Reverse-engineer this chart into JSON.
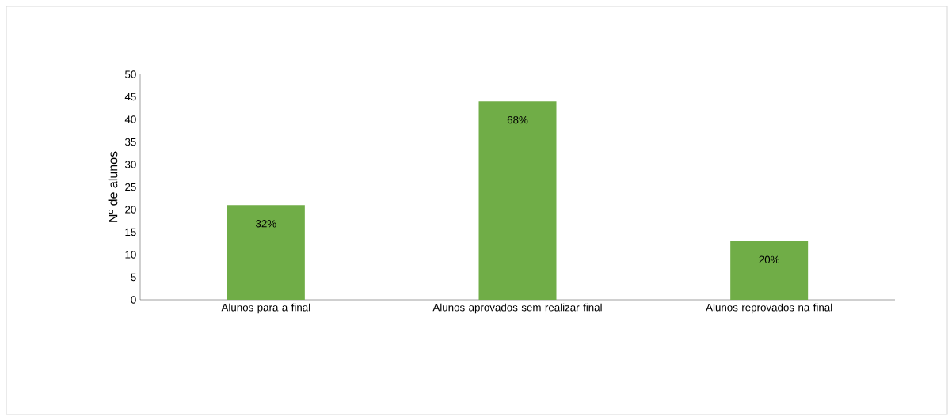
{
  "chart_data": {
    "type": "bar",
    "ylabel": "Nº de alunos",
    "categories": [
      "Alunos para a final",
      "Alunos aprovados sem realizar final",
      "Alunos reprovados na final"
    ],
    "values": [
      21,
      44,
      13
    ],
    "annotations": [
      {
        "text": "32%",
        "x": "Alunos para a final",
        "y": 21
      },
      {
        "text": "68%",
        "x": "Alunos aprovados sem realizar final",
        "y": 44
      },
      {
        "text": "20%",
        "x": "Alunos reprovados na final",
        "y": 13
      }
    ],
    "color": "#70ad47",
    "ylim": [
      0,
      50
    ],
    "yticks": [
      0,
      5,
      10,
      15,
      20,
      25,
      30,
      35,
      40,
      45,
      50
    ]
  }
}
